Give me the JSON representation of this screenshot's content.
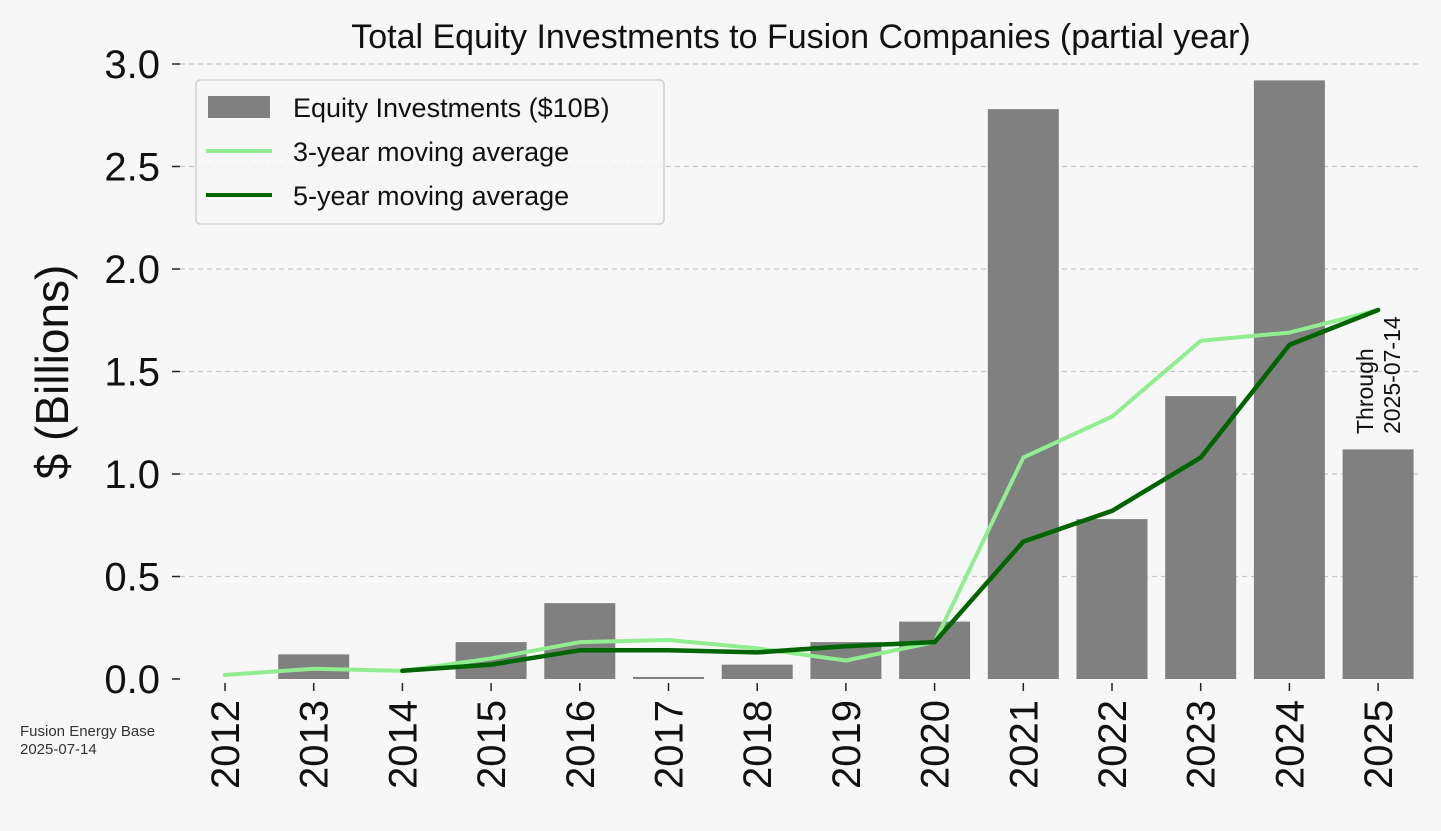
{
  "chart_data": {
    "type": "bar",
    "title": "Total Equity Investments to Fusion Companies (partial year)",
    "xlabel": "",
    "ylabel": "$ (Billions)",
    "ylim": [
      0,
      3.0
    ],
    "yticks": [
      "0.0",
      "0.5",
      "1.0",
      "1.5",
      "2.0",
      "2.5",
      "3.0"
    ],
    "categories": [
      "2012",
      "2013",
      "2014",
      "2015",
      "2016",
      "2017",
      "2018",
      "2019",
      "2020",
      "2021",
      "2022",
      "2023",
      "2024",
      "2025"
    ],
    "series": [
      {
        "name": "Equity Investments ($10B)",
        "kind": "bar",
        "color": "#808080",
        "values": [
          0.0,
          0.12,
          0.0,
          0.18,
          0.37,
          0.01,
          0.07,
          0.18,
          0.28,
          2.78,
          0.78,
          1.38,
          2.92,
          1.12
        ]
      },
      {
        "name": "3-year moving average",
        "kind": "line",
        "color": "#90ee90",
        "values": [
          0.02,
          0.05,
          0.04,
          0.1,
          0.18,
          0.19,
          0.15,
          0.09,
          0.18,
          1.08,
          1.28,
          1.65,
          1.69,
          1.8
        ]
      },
      {
        "name": "5-year moving average",
        "kind": "line",
        "color": "#006400",
        "values": [
          null,
          null,
          0.04,
          0.07,
          0.14,
          0.14,
          0.13,
          0.16,
          0.18,
          0.67,
          0.82,
          1.08,
          1.63,
          1.8
        ]
      }
    ],
    "annotation": {
      "line1": "Through",
      "line2": "2025-07-14",
      "category": "2025"
    },
    "grid": "horizontal-dashed",
    "legend_position": "top-left"
  },
  "footer": {
    "source": "Fusion Energy Base",
    "date": "2025-07-14"
  },
  "colors": {
    "background": "#f7f7f7",
    "grid": "#c8c8c8",
    "text": "#111111"
  }
}
